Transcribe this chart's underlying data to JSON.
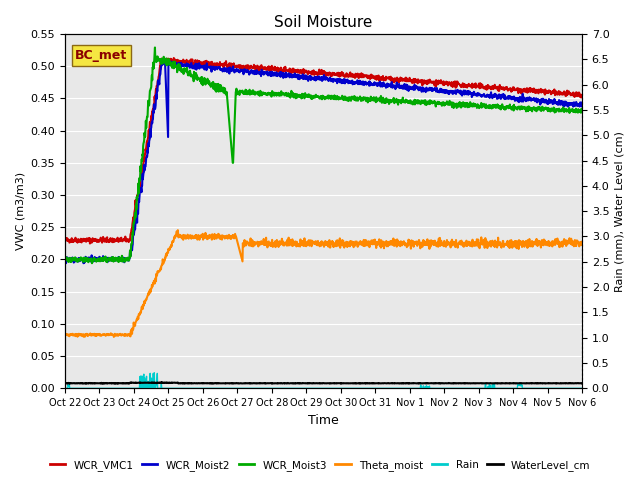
{
  "title": "Soil Moisture",
  "xlabel": "Time",
  "ylabel_left": "VWC (m3/m3)",
  "ylabel_right": "Rain (mm), Water Level (cm)",
  "x_tick_labels": [
    "Oct 22",
    "Oct 23",
    "Oct 24",
    "Oct 25",
    "Oct 26",
    "Oct 27",
    "Oct 28",
    "Oct 29",
    "Oct 30",
    "Oct 31",
    "Nov 1",
    "Nov 2",
    "Nov 3",
    "Nov 4",
    "Nov 5",
    "Nov 6"
  ],
  "ylim_left": [
    0.0,
    0.55
  ],
  "ylim_right": [
    0.0,
    7.0
  ],
  "yticks_left": [
    0.0,
    0.05,
    0.1,
    0.15,
    0.2,
    0.25,
    0.3,
    0.35,
    0.4,
    0.45,
    0.5,
    0.55
  ],
  "yticks_right": [
    0.0,
    0.5,
    1.0,
    1.5,
    2.0,
    2.5,
    3.0,
    3.5,
    4.0,
    4.5,
    5.0,
    5.5,
    6.0,
    6.5,
    7.0
  ],
  "bg_color": "#e8e8e8",
  "annotation_text": "BC_met",
  "annotation_box_color": "#f5e642",
  "annotation_text_color": "#8b0000",
  "legend_entries": [
    "WCR_VMC1",
    "WCR_Moist2",
    "WCR_Moist3",
    "Theta_moist",
    "Rain",
    "WaterLevel_cm"
  ],
  "line_colors": [
    "#cc0000",
    "#0000cc",
    "#00aa00",
    "#ff8800",
    "#00cccc",
    "#000000"
  ],
  "line_widths": [
    1.5,
    1.5,
    1.5,
    1.5,
    1.0,
    1.5
  ]
}
